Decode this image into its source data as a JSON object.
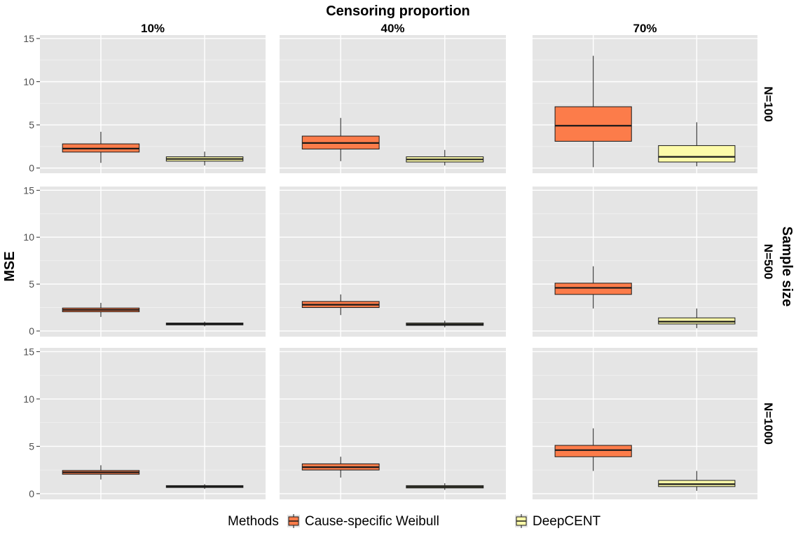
{
  "chart_data": {
    "type": "boxplot",
    "title": "Censoring proportion",
    "ylabel": "MSE",
    "row_facet_title": "Sample size",
    "columns": [
      "10%",
      "40%",
      "70%"
    ],
    "rows": [
      "N=100",
      "N=500",
      "N=1000"
    ],
    "ylim": [
      -0.6,
      15.4
    ],
    "yticks": [
      0,
      5,
      10,
      15
    ],
    "legend": {
      "title": "Methods",
      "position": "bottom",
      "items": [
        {
          "name": "Cause-specific Weibull",
          "color": "#fc7c4a"
        },
        {
          "name": "DeepCENT",
          "color": "#fdfba9"
        }
      ]
    },
    "colors": {
      "panel_bg": "#e5e5e5",
      "grid_major": "#ffffff",
      "grid_minor": "#f2f2f2",
      "box_stroke": "#1a1a1a"
    },
    "panels": [
      {
        "row": "N=100",
        "col": "10%",
        "boxes": [
          {
            "method": "Cause-specific Weibull",
            "min": 0.6,
            "q1": 1.85,
            "median": 2.25,
            "q3": 2.8,
            "max": 4.2
          },
          {
            "method": "DeepCENT",
            "min": 0.3,
            "q1": 0.8,
            "median": 1.05,
            "q3": 1.3,
            "max": 1.9
          }
        ]
      },
      {
        "row": "N=100",
        "col": "40%",
        "boxes": [
          {
            "method": "Cause-specific Weibull",
            "min": 0.8,
            "q1": 2.2,
            "median": 2.9,
            "q3": 3.7,
            "max": 5.8
          },
          {
            "method": "DeepCENT",
            "min": 0.3,
            "q1": 0.7,
            "median": 1.0,
            "q3": 1.3,
            "max": 2.1
          }
        ]
      },
      {
        "row": "N=100",
        "col": "70%",
        "boxes": [
          {
            "method": "Cause-specific Weibull",
            "min": 0.1,
            "q1": 3.1,
            "median": 4.9,
            "q3": 7.1,
            "max": 13.0
          },
          {
            "method": "DeepCENT",
            "min": 0.2,
            "q1": 0.7,
            "median": 1.3,
            "q3": 2.6,
            "max": 5.3
          }
        ]
      },
      {
        "row": "N=500",
        "col": "10%",
        "boxes": [
          {
            "method": "Cause-specific Weibull",
            "min": 1.5,
            "q1": 2.05,
            "median": 2.25,
            "q3": 2.45,
            "max": 3.0
          },
          {
            "method": "DeepCENT",
            "min": 0.5,
            "q1": 0.65,
            "median": 0.75,
            "q3": 0.85,
            "max": 1.0
          }
        ]
      },
      {
        "row": "N=500",
        "col": "40%",
        "boxes": [
          {
            "method": "Cause-specific Weibull",
            "min": 1.7,
            "q1": 2.5,
            "median": 2.8,
            "q3": 3.15,
            "max": 3.9
          },
          {
            "method": "DeepCENT",
            "min": 0.4,
            "q1": 0.6,
            "median": 0.72,
            "q3": 0.85,
            "max": 1.1
          }
        ]
      },
      {
        "row": "N=500",
        "col": "70%",
        "boxes": [
          {
            "method": "Cause-specific Weibull",
            "min": 2.4,
            "q1": 3.9,
            "median": 4.6,
            "q3": 5.1,
            "max": 6.9
          },
          {
            "method": "DeepCENT",
            "min": 0.3,
            "q1": 0.75,
            "median": 1.0,
            "q3": 1.4,
            "max": 2.4
          }
        ]
      },
      {
        "row": "N=1000",
        "col": "10%",
        "boxes": [
          {
            "method": "Cause-specific Weibull",
            "min": 1.5,
            "q1": 2.05,
            "median": 2.25,
            "q3": 2.45,
            "max": 3.0
          },
          {
            "method": "DeepCENT",
            "min": 0.5,
            "q1": 0.65,
            "median": 0.75,
            "q3": 0.85,
            "max": 1.0
          }
        ]
      },
      {
        "row": "N=1000",
        "col": "40%",
        "boxes": [
          {
            "method": "Cause-specific Weibull",
            "min": 1.7,
            "q1": 2.5,
            "median": 2.8,
            "q3": 3.15,
            "max": 3.9
          },
          {
            "method": "DeepCENT",
            "min": 0.4,
            "q1": 0.6,
            "median": 0.72,
            "q3": 0.85,
            "max": 1.1
          }
        ]
      },
      {
        "row": "N=1000",
        "col": "70%",
        "boxes": [
          {
            "method": "Cause-specific Weibull",
            "min": 2.4,
            "q1": 3.9,
            "median": 4.6,
            "q3": 5.1,
            "max": 6.9
          },
          {
            "method": "DeepCENT",
            "min": 0.3,
            "q1": 0.75,
            "median": 1.0,
            "q3": 1.4,
            "max": 2.4
          }
        ]
      }
    ]
  }
}
